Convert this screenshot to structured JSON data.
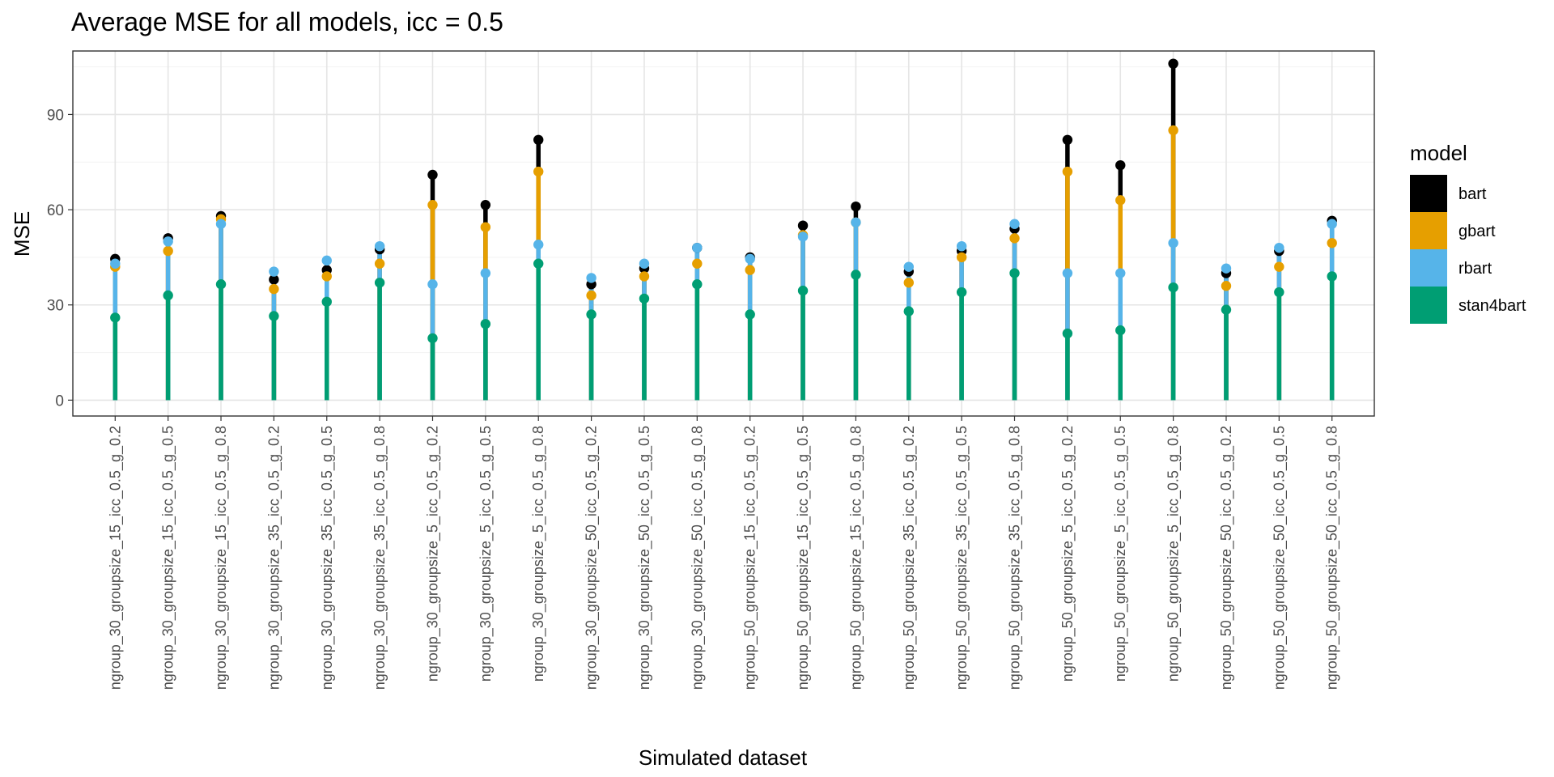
{
  "chart_data": {
    "type": "line",
    "title": "Average MSE for all models, icc = 0.5",
    "xlabel": "Simulated dataset",
    "ylabel": "MSE",
    "ylim": [
      -5,
      110
    ],
    "yticks": [
      0,
      30,
      60,
      90
    ],
    "grid": true,
    "legend": {
      "title": "model",
      "position": "right"
    },
    "categories": [
      "ngroup_30_groupsize_15_icc_0.5_g_0.2",
      "ngroup_30_groupsize_15_icc_0.5_g_0.5",
      "ngroup_30_groupsize_15_icc_0.5_g_0.8",
      "ngroup_30_groupsize_35_icc_0.5_g_0.2",
      "ngroup_30_groupsize_35_icc_0.5_g_0.5",
      "ngroup_30_groupsize_35_icc_0.5_g_0.8",
      "ngroup_30_groupsize_5_icc_0.5_g_0.2",
      "ngroup_30_groupsize_5_icc_0.5_g_0.5",
      "ngroup_30_groupsize_5_icc_0.5_g_0.8",
      "ngroup_30_groupsize_50_icc_0.5_g_0.2",
      "ngroup_30_groupsize_50_icc_0.5_g_0.5",
      "ngroup_30_groupsize_50_icc_0.5_g_0.8",
      "ngroup_50_groupsize_15_icc_0.5_g_0.2",
      "ngroup_50_groupsize_15_icc_0.5_g_0.5",
      "ngroup_50_groupsize_15_icc_0.5_g_0.8",
      "ngroup_50_groupsize_35_icc_0.5_g_0.2",
      "ngroup_50_groupsize_35_icc_0.5_g_0.5",
      "ngroup_50_groupsize_35_icc_0.5_g_0.8",
      "ngroup_50_groupsize_5_icc_0.5_g_0.2",
      "ngroup_50_groupsize_5_icc_0.5_g_0.5",
      "ngroup_50_groupsize_5_icc_0.5_g_0.8",
      "ngroup_50_groupsize_50_icc_0.5_g_0.2",
      "ngroup_50_groupsize_50_icc_0.5_g_0.5",
      "ngroup_50_groupsize_50_icc_0.5_g_0.8"
    ],
    "series": [
      {
        "name": "bart",
        "color": "#000000",
        "values": [
          44.5,
          51,
          58,
          38,
          41,
          47.5,
          71,
          61.5,
          82,
          36.5,
          41.5,
          48,
          45,
          55,
          61,
          40.5,
          47,
          54,
          82,
          74,
          106,
          40,
          47,
          56.5
        ]
      },
      {
        "name": "gbart",
        "color": "#E69F00",
        "values": [
          42,
          47,
          57,
          35,
          39,
          43,
          61.5,
          54.5,
          72,
          33,
          39,
          43,
          41,
          52,
          56,
          37,
          45,
          51,
          72,
          63,
          85,
          36,
          42,
          49.5
        ]
      },
      {
        "name": "rbart",
        "color": "#56B4E9",
        "values": [
          43,
          50,
          55.5,
          40.5,
          44,
          48.5,
          36.5,
          40,
          49,
          38.5,
          43,
          48,
          44.5,
          51.5,
          56,
          42,
          48.5,
          55.5,
          40,
          40,
          49.5,
          41.5,
          48,
          55.5
        ]
      },
      {
        "name": "stan4bart",
        "color": "#009E73",
        "values": [
          26,
          33,
          36.5,
          26.5,
          31,
          37,
          19.5,
          24,
          43,
          27,
          32,
          36.5,
          27,
          34.5,
          39.5,
          28,
          34,
          40,
          21,
          22,
          35.5,
          28.5,
          34,
          39
        ]
      }
    ]
  }
}
